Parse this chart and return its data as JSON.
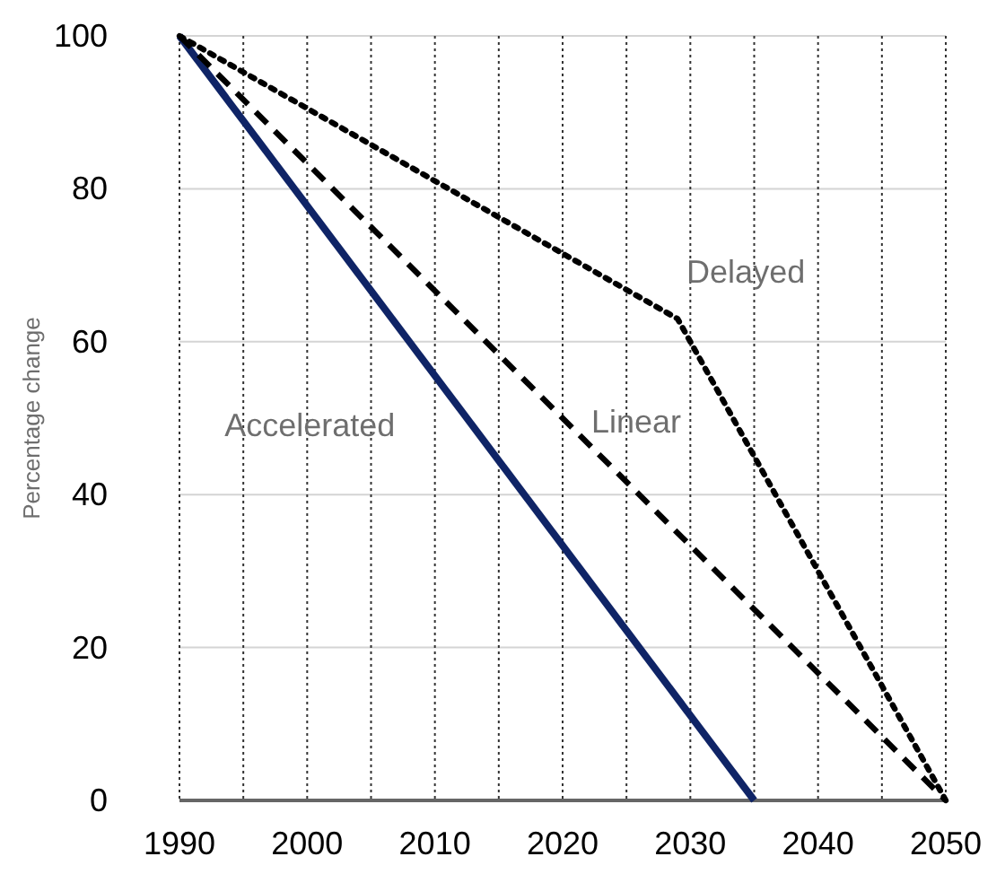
{
  "chart_data": {
    "type": "line",
    "ylabel": "Percentage change",
    "xlim": [
      1990,
      2050
    ],
    "ylim": [
      0,
      100
    ],
    "xticks": [
      1990,
      {
        "value": 1995,
        "label": null
      },
      2000,
      {
        "value": 2005,
        "label": null
      },
      2010,
      {
        "value": 2015,
        "label": null
      },
      2020,
      {
        "value": 2025,
        "label": null
      },
      2030,
      {
        "value": 2035,
        "label": null
      },
      2040,
      {
        "value": 2045,
        "label": null
      },
      2050
    ],
    "yticks": [
      0,
      20,
      40,
      60,
      80,
      100
    ],
    "grid": true,
    "marker": "none",
    "series": [
      {
        "name": "Accelerated",
        "color": "#0f2466",
        "line_style": "solid",
        "x": [
          1990,
          2035
        ],
        "values": [
          100,
          0
        ]
      },
      {
        "name": "Linear",
        "color": "#000000",
        "line_style": "dashed",
        "x": [
          1990,
          2050
        ],
        "values": [
          100,
          0
        ]
      },
      {
        "name": "Delayed",
        "color": "#000000",
        "line_style": "dotted",
        "x": [
          1990,
          2029,
          2050
        ],
        "values": [
          100,
          63,
          0
        ]
      }
    ]
  }
}
